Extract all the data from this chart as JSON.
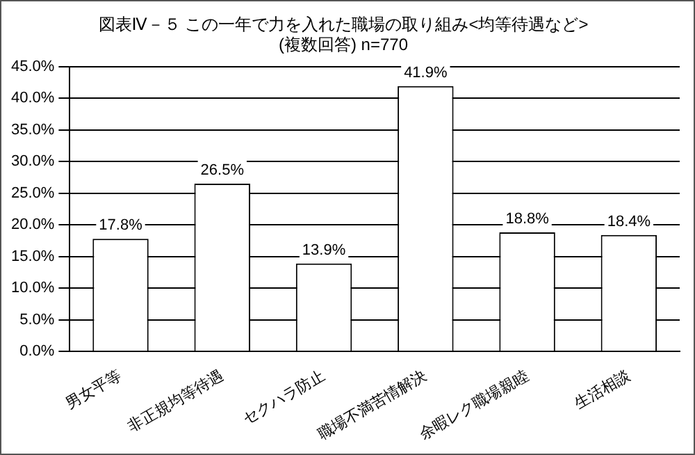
{
  "chart_data": {
    "type": "bar",
    "title": "図表Ⅳ－５ この一年で力を入れた職場の取り組み<均等待遇など>",
    "subtitle": "(複数回答) n=770",
    "categories": [
      "男女平等",
      "非正規均等待遇",
      "セクハラ防止",
      "職場不満苦情解決",
      "余暇レク職場親睦",
      "生活相談"
    ],
    "values": [
      17.8,
      26.5,
      13.9,
      41.9,
      18.8,
      18.4
    ],
    "value_labels": [
      "17.8%",
      "26.5%",
      "13.9%",
      "41.9%",
      "18.8%",
      "18.4%"
    ],
    "color": "#ffffff",
    "ylim": [
      0,
      45
    ],
    "yticks": [
      {
        "value": 0,
        "label": "0.0%"
      },
      {
        "value": 5,
        "label": "5.0%"
      },
      {
        "value": 10,
        "label": "10.0%"
      },
      {
        "value": 15,
        "label": "15.0%"
      },
      {
        "value": 20,
        "label": "20.0%"
      },
      {
        "value": 25,
        "label": "25.0%"
      },
      {
        "value": 30,
        "label": "30.0%"
      },
      {
        "value": 35,
        "label": "35.0%"
      },
      {
        "value": 40,
        "label": "40.0%"
      },
      {
        "value": 45,
        "label": "45.0%"
      }
    ],
    "grid": "y"
  }
}
